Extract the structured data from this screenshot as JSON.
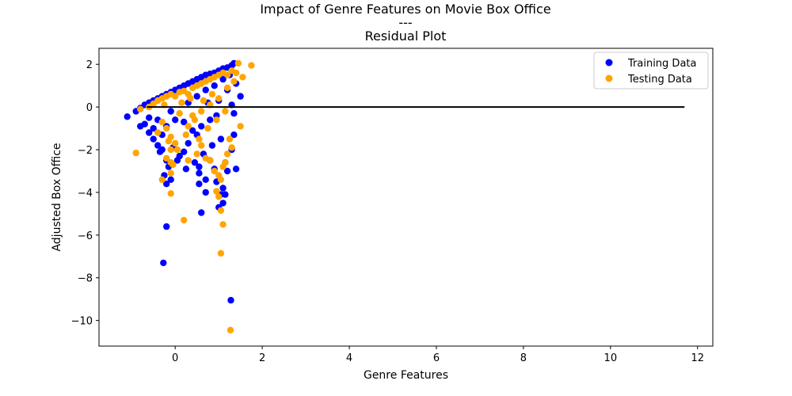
{
  "chart_data": {
    "type": "scatter",
    "title_lines": [
      "Impact of Genre Features on Movie Box Office",
      "---",
      "Residual Plot"
    ],
    "xlabel": "Genre Features",
    "ylabel": "Adjusted Box Office",
    "xlim": [
      -1.75,
      12.35
    ],
    "ylim": [
      -11.2,
      2.75
    ],
    "x_ticks": [
      0,
      2,
      4,
      6,
      8,
      10,
      12
    ],
    "x_tick_labels": [
      "0",
      "2",
      "4",
      "6",
      "8",
      "10",
      "12"
    ],
    "y_ticks": [
      2,
      0,
      -2,
      -4,
      -6,
      -8,
      -10
    ],
    "y_tick_labels": [
      "2",
      "0",
      "−2",
      "−4",
      "−6",
      "−8",
      "−10"
    ],
    "grid": false,
    "legend_position": "top-right",
    "hline": {
      "y": 0,
      "xmin": -0.65,
      "xmax": 11.7,
      "color": "#000000"
    },
    "series": [
      {
        "name": "Training Data",
        "color": "#0000ff",
        "points": [
          [
            -1.1,
            -0.45
          ],
          [
            -0.9,
            -0.2
          ],
          [
            -0.8,
            -0.05
          ],
          [
            -0.7,
            0.1
          ],
          [
            -0.6,
            0.2
          ],
          [
            -0.5,
            0.3
          ],
          [
            -0.4,
            0.4
          ],
          [
            -0.3,
            0.5
          ],
          [
            -0.2,
            0.6
          ],
          [
            -0.1,
            0.7
          ],
          [
            0.0,
            0.8
          ],
          [
            0.1,
            0.9
          ],
          [
            0.2,
            1.0
          ],
          [
            0.3,
            1.1
          ],
          [
            0.4,
            1.2
          ],
          [
            0.5,
            1.3
          ],
          [
            0.6,
            1.4
          ],
          [
            0.7,
            1.5
          ],
          [
            0.8,
            1.55
          ],
          [
            0.9,
            1.6
          ],
          [
            1.0,
            1.7
          ],
          [
            1.1,
            1.8
          ],
          [
            1.2,
            1.85
          ],
          [
            1.3,
            1.95
          ],
          [
            1.35,
            2.05
          ],
          [
            -0.7,
            -0.8
          ],
          [
            -0.6,
            -1.2
          ],
          [
            -0.5,
            -1.5
          ],
          [
            -0.4,
            -1.8
          ],
          [
            -0.35,
            -2.1
          ],
          [
            -0.3,
            -2.0
          ],
          [
            -0.2,
            -2.5
          ],
          [
            -0.15,
            -2.8
          ],
          [
            -0.25,
            -3.2
          ],
          [
            -0.1,
            -3.4
          ],
          [
            -0.2,
            -3.6
          ],
          [
            0.1,
            -2.3
          ],
          [
            0.2,
            -2.1
          ],
          [
            0.3,
            -1.7
          ],
          [
            0.5,
            -1.3
          ],
          [
            0.55,
            -2.8
          ],
          [
            0.55,
            -3.1
          ],
          [
            0.55,
            -3.6
          ],
          [
            0.6,
            -4.95
          ],
          [
            0.7,
            -3.4
          ],
          [
            0.7,
            -4.0
          ],
          [
            0.8,
            -2.5
          ],
          [
            0.9,
            -2.9
          ],
          [
            0.95,
            -3.5
          ],
          [
            1.0,
            -4.7
          ],
          [
            1.05,
            -4.1
          ],
          [
            1.1,
            -3.8
          ],
          [
            1.15,
            -4.1
          ],
          [
            1.1,
            -4.5
          ],
          [
            1.2,
            -3.0
          ],
          [
            1.3,
            -2.0
          ],
          [
            1.35,
            -1.3
          ],
          [
            1.4,
            -2.9
          ],
          [
            1.35,
            -0.3
          ],
          [
            1.5,
            0.5
          ],
          [
            1.2,
            0.8
          ],
          [
            1.0,
            0.3
          ],
          [
            0.8,
            -0.6
          ],
          [
            0.6,
            -0.9
          ],
          [
            0.4,
            -1.1
          ],
          [
            0.2,
            -0.7
          ],
          [
            0.0,
            -0.6
          ],
          [
            -0.1,
            -0.2
          ],
          [
            -0.2,
            -0.9
          ],
          [
            -0.3,
            -1.3
          ],
          [
            -0.4,
            -0.6
          ],
          [
            -0.5,
            -1.0
          ],
          [
            -0.6,
            -0.5
          ],
          [
            -0.8,
            -0.9
          ],
          [
            0.3,
            0.2
          ],
          [
            0.5,
            0.5
          ],
          [
            0.7,
            0.8
          ],
          [
            0.9,
            1.0
          ],
          [
            1.1,
            1.3
          ],
          [
            1.25,
            1.5
          ],
          [
            -0.2,
            -5.6
          ],
          [
            -0.27,
            -7.3
          ],
          [
            1.28,
            -9.05
          ],
          [
            1.4,
            1.1
          ],
          [
            1.3,
            0.1
          ],
          [
            1.05,
            -1.5
          ],
          [
            0.85,
            -1.8
          ],
          [
            0.65,
            -2.2
          ],
          [
            0.45,
            -2.6
          ],
          [
            0.25,
            -2.9
          ],
          [
            0.05,
            -2.5
          ],
          [
            -0.05,
            -1.9
          ],
          [
            1.15,
            -2.6
          ],
          [
            0.95,
            -0.4
          ],
          [
            0.75,
            0.2
          ]
        ]
      },
      {
        "name": "Testing Data",
        "color": "#ffa500",
        "points": [
          [
            -0.9,
            -2.15
          ],
          [
            -0.8,
            -0.1
          ],
          [
            -0.6,
            0.0
          ],
          [
            -0.5,
            0.15
          ],
          [
            -0.4,
            0.3
          ],
          [
            -0.3,
            0.4
          ],
          [
            -0.2,
            0.5
          ],
          [
            -0.1,
            0.6
          ],
          [
            0.0,
            0.5
          ],
          [
            0.1,
            0.7
          ],
          [
            0.2,
            0.75
          ],
          [
            0.3,
            0.6
          ],
          [
            0.4,
            0.9
          ],
          [
            0.5,
            1.0
          ],
          [
            0.6,
            1.1
          ],
          [
            0.7,
            1.2
          ],
          [
            0.8,
            1.3
          ],
          [
            0.9,
            1.4
          ],
          [
            1.0,
            1.5
          ],
          [
            1.1,
            1.6
          ],
          [
            1.2,
            1.5
          ],
          [
            1.3,
            1.7
          ],
          [
            1.4,
            1.6
          ],
          [
            1.45,
            2.05
          ],
          [
            1.75,
            1.95
          ],
          [
            1.55,
            1.4
          ],
          [
            1.5,
            -0.9
          ],
          [
            -0.3,
            -0.7
          ],
          [
            -0.2,
            -1.0
          ],
          [
            -0.1,
            -1.4
          ],
          [
            0.0,
            -1.7
          ],
          [
            -0.1,
            -2.0
          ],
          [
            -0.2,
            -2.4
          ],
          [
            -0.1,
            -2.6
          ],
          [
            -0.05,
            -2.7
          ],
          [
            -0.3,
            -3.4
          ],
          [
            -0.1,
            -3.1
          ],
          [
            -0.1,
            -4.05
          ],
          [
            0.2,
            -5.3
          ],
          [
            0.3,
            -2.5
          ],
          [
            0.5,
            -2.2
          ],
          [
            0.6,
            -1.8
          ],
          [
            0.7,
            -2.4
          ],
          [
            0.8,
            -2.5
          ],
          [
            0.9,
            -3.0
          ],
          [
            0.95,
            -3.95
          ],
          [
            1.0,
            -4.2
          ],
          [
            1.05,
            -4.85
          ],
          [
            1.1,
            -5.5
          ],
          [
            1.05,
            -6.85
          ],
          [
            1.1,
            -2.8
          ],
          [
            1.15,
            -2.6
          ],
          [
            1.2,
            -2.2
          ],
          [
            1.25,
            -1.5
          ],
          [
            1.3,
            -1.9
          ],
          [
            1.27,
            -10.45
          ],
          [
            1.0,
            -3.2
          ],
          [
            1.05,
            -3.4
          ],
          [
            0.4,
            -0.4
          ],
          [
            0.6,
            -0.2
          ],
          [
            0.8,
            0.1
          ],
          [
            1.0,
            0.4
          ],
          [
            1.2,
            0.9
          ],
          [
            0.3,
            -0.9
          ],
          [
            0.1,
            -0.3
          ],
          [
            -0.4,
            -1.2
          ],
          [
            0.55,
            -1.5
          ],
          [
            0.75,
            -1.0
          ],
          [
            0.95,
            -0.6
          ],
          [
            1.15,
            -0.2
          ],
          [
            -0.15,
            -1.6
          ],
          [
            0.05,
            -2.0
          ],
          [
            0.25,
            -1.3
          ],
          [
            0.45,
            -0.6
          ],
          [
            0.65,
            0.3
          ],
          [
            0.85,
            0.6
          ],
          [
            1.35,
            1.2
          ],
          [
            0.15,
            0.2
          ],
          [
            -0.25,
            0.1
          ],
          [
            0.35,
            0.4
          ]
        ]
      }
    ]
  }
}
